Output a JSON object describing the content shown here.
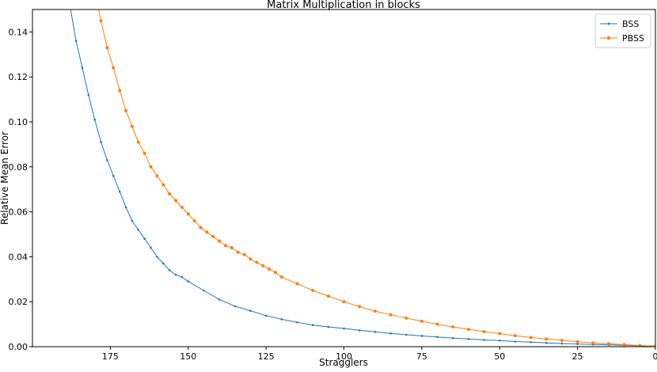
{
  "chart_data": {
    "type": "line",
    "title": "Matrix Multiplication in blocks",
    "xlabel": "Stragglers",
    "ylabel": "Relative Mean Error",
    "xlim": [
      200,
      0
    ],
    "ylim": [
      0,
      0.15
    ],
    "x_inverted": true,
    "grid": false,
    "legend_position": "top-right",
    "x_ticks": [
      175,
      150,
      125,
      100,
      75,
      50,
      25,
      0
    ],
    "y_ticks": [
      0.0,
      0.02,
      0.04,
      0.06,
      0.08,
      0.1,
      0.12,
      0.14
    ],
    "y_tick_labels": [
      "0.00",
      "0.02",
      "0.04",
      "0.06",
      "0.08",
      "0.10",
      "0.12",
      "0.14"
    ],
    "series": [
      {
        "name": "BSS",
        "color": "#1f77b4",
        "marker": "point",
        "x": [
          190,
          188,
          186,
          184,
          182,
          180,
          178,
          176,
          174,
          172,
          170,
          168,
          166,
          164,
          162,
          160,
          158,
          156,
          154,
          152,
          150,
          145,
          140,
          135,
          130,
          125,
          120,
          115,
          110,
          105,
          100,
          95,
          90,
          85,
          80,
          75,
          70,
          65,
          60,
          55,
          50,
          45,
          40,
          35,
          30,
          25,
          20,
          15,
          10,
          5,
          0
        ],
        "y": [
          0.172,
          0.152,
          0.136,
          0.124,
          0.112,
          0.101,
          0.091,
          0.083,
          0.076,
          0.069,
          0.062,
          0.056,
          0.052,
          0.048,
          0.044,
          0.04,
          0.037,
          0.034,
          0.032,
          0.031,
          0.029,
          0.025,
          0.021,
          0.018,
          0.016,
          0.0138,
          0.0122,
          0.0108,
          0.0096,
          0.0088,
          0.0081,
          0.0073,
          0.0066,
          0.0059,
          0.0053,
          0.0048,
          0.0043,
          0.0038,
          0.0034,
          0.003,
          0.0027,
          0.0023,
          0.002,
          0.0017,
          0.0014,
          0.0012,
          0.001,
          0.0008,
          0.0006,
          0.0004,
          0.0002
        ]
      },
      {
        "name": "PBSS",
        "color": "#ff7f0e",
        "marker": "circle",
        "x": [
          180,
          178,
          176,
          174,
          172,
          170,
          168,
          166,
          164,
          162,
          160,
          158,
          156,
          154,
          152,
          150,
          148,
          146,
          144,
          142,
          140,
          138,
          136,
          134,
          132,
          130,
          128,
          126,
          124,
          122,
          120,
          115,
          110,
          105,
          100,
          95,
          90,
          85,
          80,
          75,
          70,
          65,
          60,
          55,
          50,
          45,
          40,
          35,
          30,
          25,
          20,
          15,
          10,
          5,
          0
        ],
        "y": [
          0.158,
          0.145,
          0.133,
          0.124,
          0.114,
          0.105,
          0.098,
          0.091,
          0.086,
          0.08,
          0.076,
          0.072,
          0.068,
          0.065,
          0.062,
          0.059,
          0.056,
          0.053,
          0.051,
          0.049,
          0.047,
          0.045,
          0.044,
          0.042,
          0.041,
          0.039,
          0.0375,
          0.036,
          0.0345,
          0.033,
          0.031,
          0.028,
          0.025,
          0.0225,
          0.02,
          0.0178,
          0.0158,
          0.0142,
          0.0127,
          0.0113,
          0.01,
          0.0088,
          0.0077,
          0.0067,
          0.0058,
          0.0049,
          0.0041,
          0.0034,
          0.0028,
          0.0022,
          0.0017,
          0.0013,
          0.0009,
          0.0005,
          0.0002
        ]
      }
    ]
  }
}
